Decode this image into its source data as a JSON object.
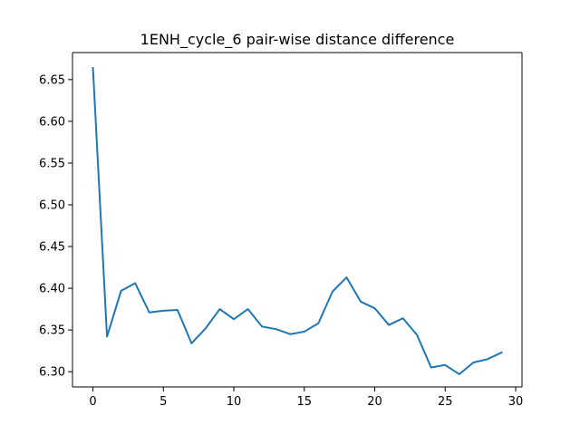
{
  "chart_data": {
    "type": "line",
    "title": "1ENH_cycle_6 pair-wise distance difference",
    "xlabel": "",
    "ylabel": "",
    "xlim": [
      -1.45,
      30.45
    ],
    "ylim": [
      6.2817,
      6.6824
    ],
    "xticks": [
      0,
      5,
      10,
      15,
      20,
      25,
      30
    ],
    "xtick_labels": [
      "0",
      "5",
      "10",
      "15",
      "20",
      "25",
      "30"
    ],
    "yticks": [
      6.3,
      6.35,
      6.4,
      6.45,
      6.5,
      6.55,
      6.6,
      6.65
    ],
    "ytick_labels": [
      "6.30",
      "6.35",
      "6.40",
      "6.45",
      "6.50",
      "6.55",
      "6.60",
      "6.65"
    ],
    "grid": false,
    "series": [
      {
        "color": "#1f77b4",
        "x": [
          0,
          1,
          2,
          3,
          4,
          5,
          6,
          7,
          8,
          9,
          10,
          11,
          12,
          13,
          14,
          15,
          16,
          17,
          18,
          19,
          20,
          21,
          22,
          23,
          24,
          25,
          26,
          27,
          28,
          29
        ],
        "y": [
          6.664,
          6.342,
          6.397,
          6.406,
          6.371,
          6.373,
          6.374,
          6.334,
          6.352,
          6.375,
          6.363,
          6.375,
          6.354,
          6.351,
          6.345,
          6.348,
          6.358,
          6.396,
          6.413,
          6.384,
          6.376,
          6.356,
          6.364,
          6.344,
          6.305,
          6.308,
          6.297,
          6.311,
          6.315,
          6.323
        ]
      }
    ]
  }
}
